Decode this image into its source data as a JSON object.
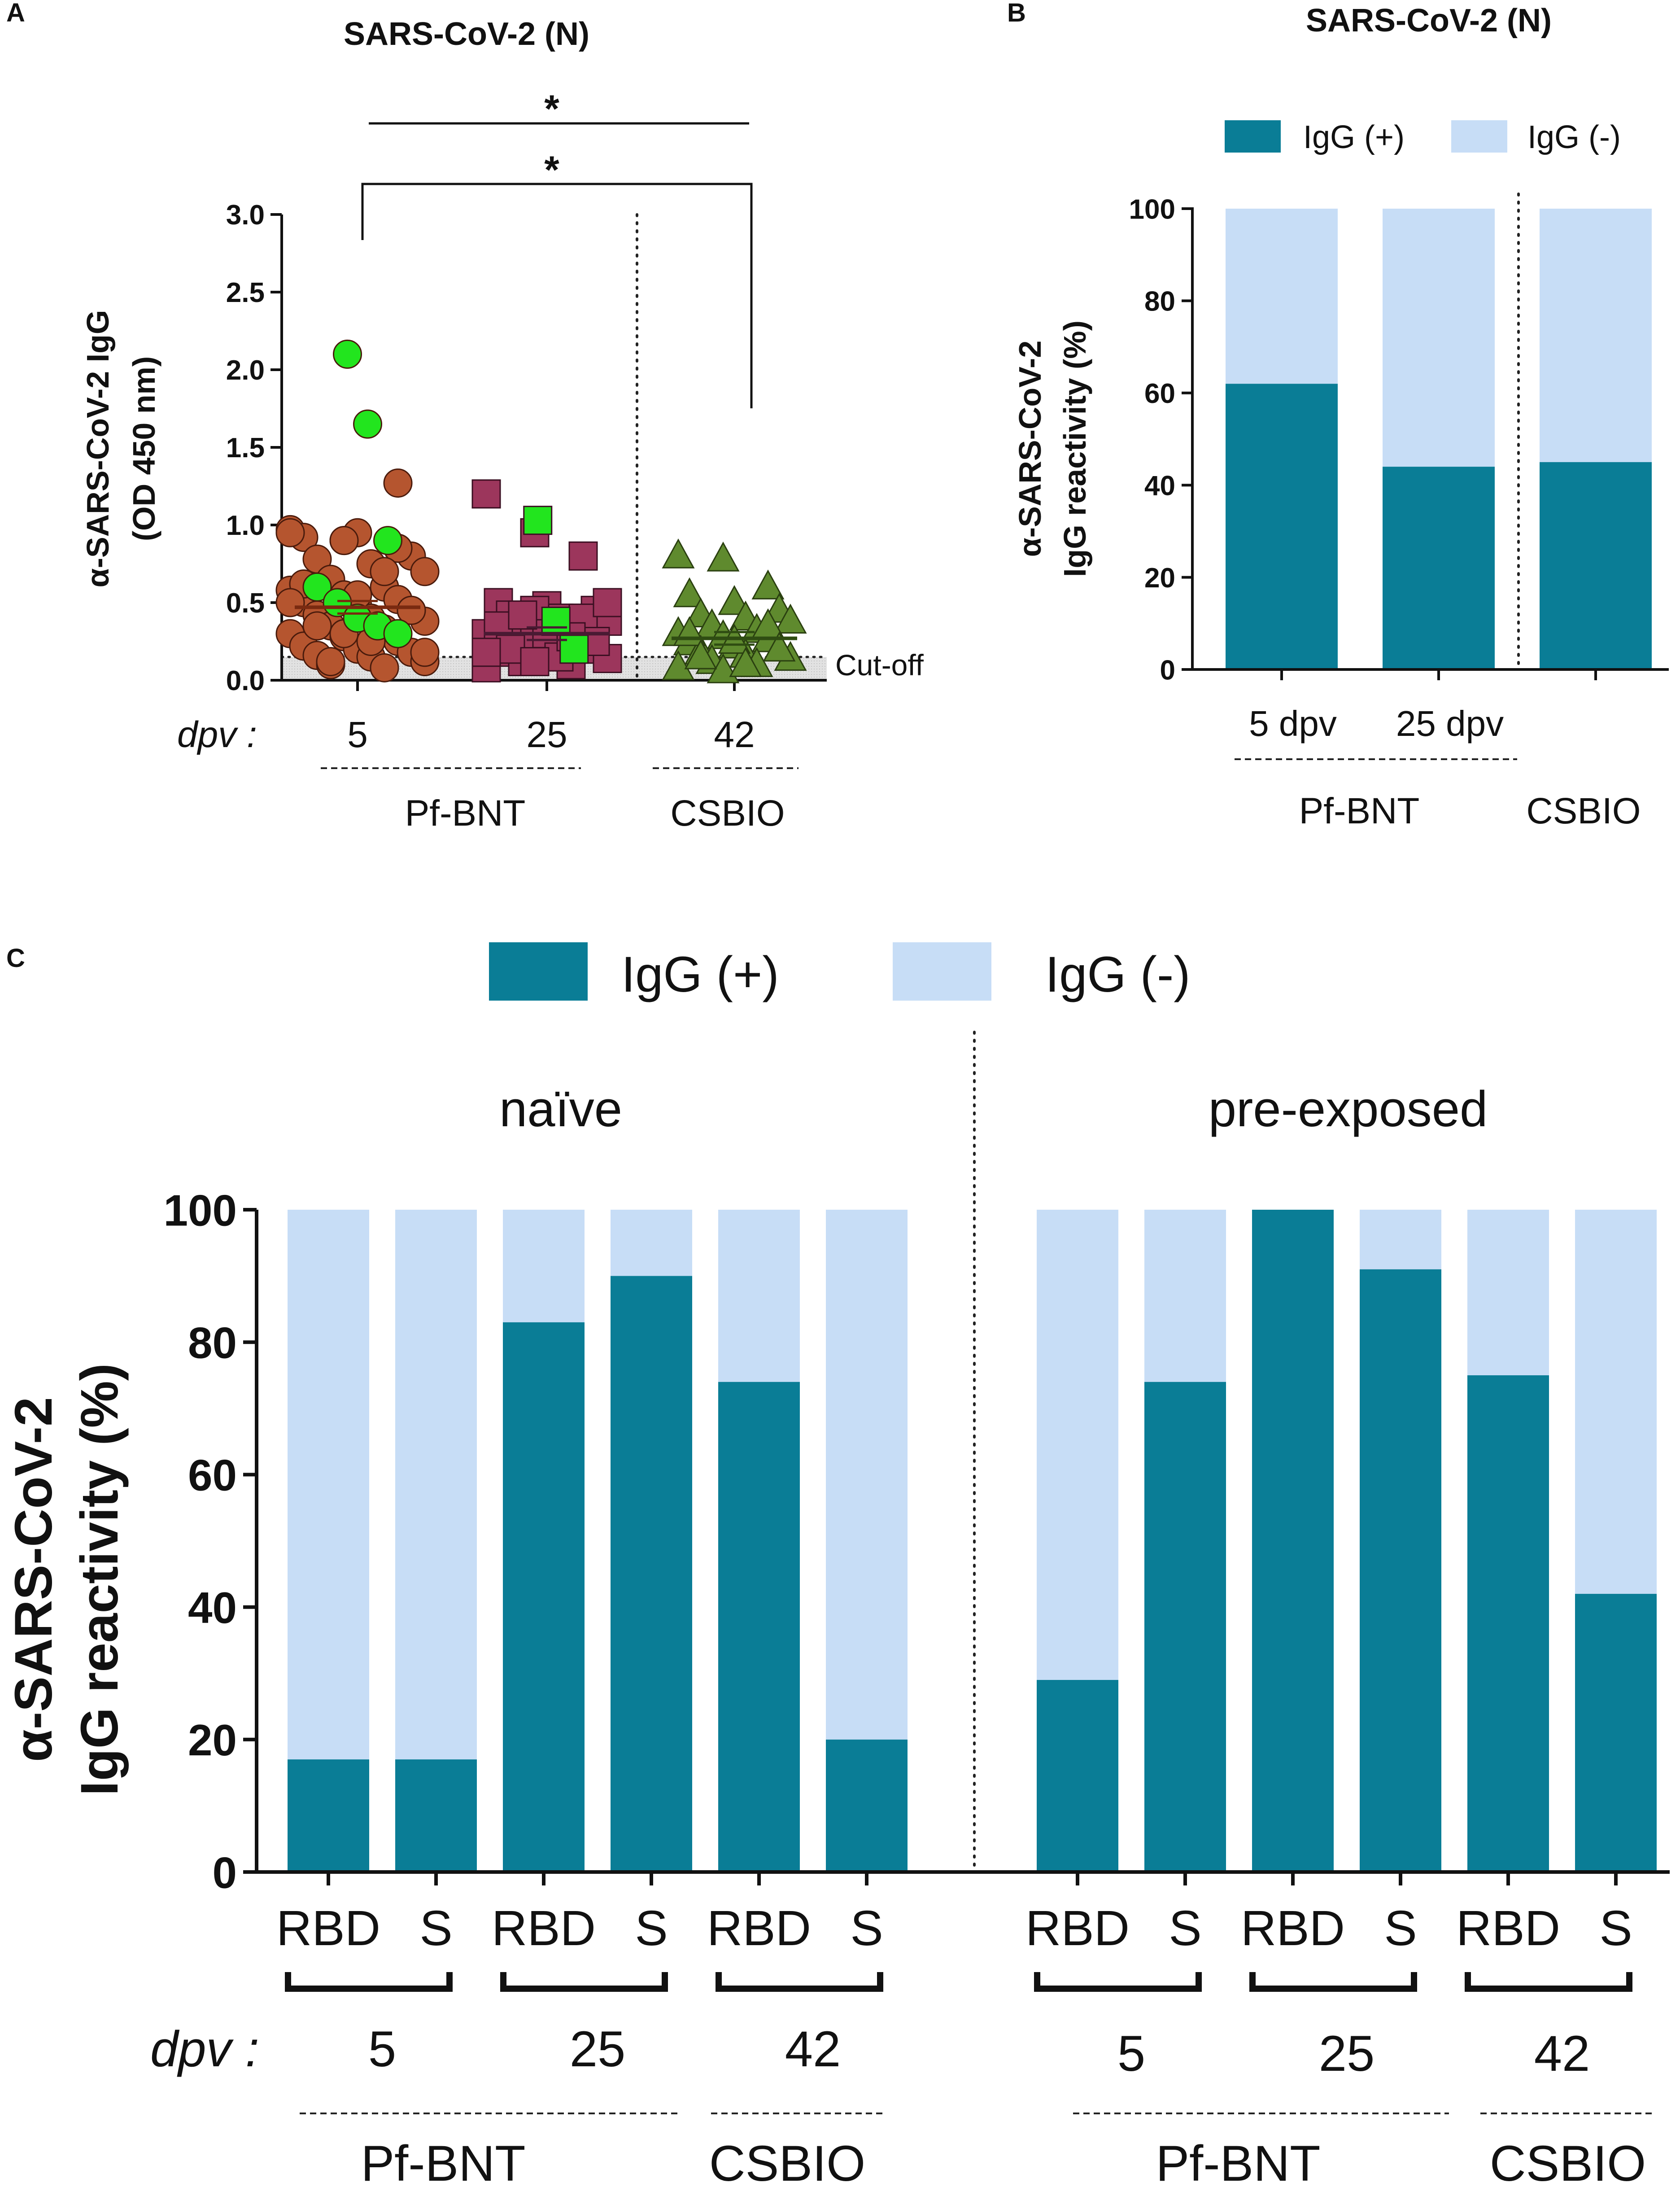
{
  "colors": {
    "positive": "#0a7d96",
    "negative": "#c7ddf6",
    "pf5": "#b5552f",
    "pf5_green": "#22e51e",
    "pf25": "#9c365c",
    "csbio": "#5f8a2e",
    "mean_pf5": "#7a2a10",
    "mean_pf25": "#4a1a33",
    "mean_csbio": "#2f4d12",
    "cutoff_band": "#d9d9d9"
  },
  "chart_data": [
    {
      "panel": "A",
      "type": "scatter",
      "title": "SARS-CoV-2 (N)",
      "ylabel_line1": "α-SARS-CoV-2 IgG",
      "ylabel_line2": "(OD 450 nm)",
      "ylim": [
        0,
        3.0
      ],
      "yticks": [
        "0.0",
        "0.5",
        "1.0",
        "1.5",
        "2.0",
        "2.5",
        "3.0"
      ],
      "xprefix": "dpv :",
      "cutoff_label": "Cut-off",
      "cutoff_value": 0.15,
      "groups": [
        {
          "name": "Pf-BNT 5 dpv",
          "category": "5",
          "marker": "circle",
          "mean": 0.47,
          "values": [
            0.97,
            0.9,
            0.85,
            0.92,
            0.95,
            0.8,
            0.78,
            0.75,
            0.7,
            0.65,
            0.6,
            0.58,
            0.55,
            0.52,
            0.5,
            0.48,
            0.45,
            0.42,
            0.4,
            0.38,
            0.35,
            0.33,
            0.3,
            0.28,
            0.25,
            0.22,
            0.2,
            0.18,
            0.16,
            0.15,
            0.12,
            0.1,
            0.08,
            0.95,
            0.9,
            0.85,
            0.62,
            0.55,
            0.45,
            0.35,
            0.25,
            0.18,
            0.12,
            0.7,
            0.5,
            0.3,
            1.27
          ],
          "highlight": [
            2.1,
            1.65,
            0.9,
            0.6,
            0.5,
            0.4,
            0.35,
            0.3
          ]
        },
        {
          "name": "Pf-BNT 25 dpv",
          "category": "25",
          "marker": "square",
          "mean": 0.3,
          "values": [
            1.2,
            0.95,
            0.8,
            0.5,
            0.48,
            0.45,
            0.42,
            0.4,
            0.38,
            0.35,
            0.32,
            0.3,
            0.28,
            0.26,
            0.24,
            0.22,
            0.2,
            0.18,
            0.16,
            0.14,
            0.12,
            0.1,
            0.08,
            0.45,
            0.4,
            0.35,
            0.3,
            0.25,
            0.2,
            0.15,
            0.5,
            0.42,
            0.28,
            0.18,
            0.12
          ],
          "highlight": [
            1.03,
            0.38,
            0.2
          ]
        },
        {
          "name": "CSBIO 42 dpv",
          "category": "42",
          "marker": "triangle",
          "mean": 0.27,
          "values": [
            0.8,
            0.78,
            0.6,
            0.55,
            0.5,
            0.45,
            0.42,
            0.4,
            0.38,
            0.35,
            0.32,
            0.3,
            0.28,
            0.26,
            0.24,
            0.22,
            0.2,
            0.18,
            0.16,
            0.14,
            0.12,
            0.1,
            0.08,
            0.06,
            0.35,
            0.3,
            0.25,
            0.2,
            0.15,
            0.1
          ],
          "highlight": []
        }
      ],
      "significance": [
        "*",
        "*"
      ],
      "group_labels": [
        "Pf-BNT",
        "CSBIO"
      ]
    },
    {
      "panel": "B",
      "type": "bar",
      "stacked": true,
      "title": "SARS-CoV-2 (N)",
      "ylabel_line1": "α-SARS-CoV-2",
      "ylabel_line2": "IgG reactivity (%)",
      "ylim": [
        0,
        100
      ],
      "yticks": [
        "0",
        "20",
        "40",
        "60",
        "80",
        "100"
      ],
      "legend": [
        "IgG (+)",
        "IgG (-)"
      ],
      "categories": [
        "5 dpv",
        "25 dpv",
        ""
      ],
      "series": [
        {
          "name": "IgG (+)",
          "values": [
            62,
            44,
            45
          ]
        },
        {
          "name": "IgG (-)",
          "values": [
            38,
            56,
            55
          ]
        }
      ],
      "group_labels": [
        "Pf-BNT",
        "CSBIO"
      ]
    },
    {
      "panel": "C",
      "type": "bar",
      "stacked": true,
      "ylabel_line1": "α-SARS-CoV-2",
      "ylabel_line2": "IgG reactivity (%)",
      "ylim": [
        0,
        100
      ],
      "yticks": [
        "0",
        "20",
        "40",
        "60",
        "80",
        "100"
      ],
      "legend": [
        "IgG (+)",
        "IgG (-)"
      ],
      "sections": [
        "naïve",
        "pre-exposed"
      ],
      "categories": [
        "RBD",
        "S",
        "RBD",
        "S",
        "RBD",
        "S",
        "RBD",
        "S",
        "RBD",
        "S",
        "RBD",
        "S"
      ],
      "series": [
        {
          "name": "IgG (+)",
          "values": [
            17,
            17,
            83,
            90,
            74,
            20,
            29,
            74,
            100,
            91,
            75,
            42
          ]
        },
        {
          "name": "IgG (-)",
          "values": [
            83,
            83,
            17,
            10,
            26,
            80,
            71,
            26,
            0,
            9,
            25,
            58
          ]
        }
      ],
      "xprefix": "dpv :",
      "dpv_labels": [
        "5",
        "25",
        "42",
        "5",
        "25",
        "42"
      ],
      "group_labels": [
        "Pf-BNT",
        "CSBIO",
        "Pf-BNT",
        "CSBIO"
      ]
    }
  ],
  "panel_labels": [
    "A",
    "B",
    "C"
  ]
}
